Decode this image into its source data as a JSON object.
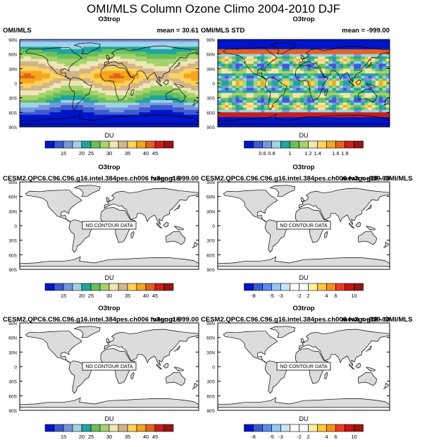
{
  "figure_title": "OMI/MLS Column Ozone Climo 2004-2010 DJF",
  "chart_data": [
    {
      "type": "heatmap",
      "variable": "O3trop",
      "left_label": "OMI/MLS",
      "right_label": "mean =  30.61",
      "units": "DU",
      "lat_ticks": [
        "90N",
        "60N",
        "30N",
        "0",
        "30S",
        "60S",
        "90S"
      ],
      "colorbar_ticks": [
        "15",
        "20",
        "25",
        "30",
        "35",
        "40",
        "45"
      ],
      "colorbar_colors": [
        "#0014c8",
        "#3c5ad2",
        "#7896dc",
        "#a0d2e6",
        "#1ea5a0",
        "#6bbf5a",
        "#a5d26e",
        "#f0e6b4",
        "#d2b48c",
        "#ffd25a",
        "#f5a51e",
        "#e1641e",
        "#c81e1e",
        "#9b1414"
      ],
      "map_fill": "ozone_field",
      "note": ""
    },
    {
      "type": "heatmap",
      "variable": "O3trop",
      "left_label": "OMI/MLS STD",
      "right_label": "mean = -999.00",
      "units": "DU",
      "lat_ticks": [
        "90N",
        "60N",
        "30N",
        "0",
        "30S",
        "60S",
        "90S"
      ],
      "colorbar_ticks": [
        "0.6",
        "0.8",
        "1",
        "1.2",
        "1.4",
        "1.6",
        "1.8"
      ],
      "colorbar_colors": [
        "#0014c8",
        "#3c5ad2",
        "#7896dc",
        "#a0d2e6",
        "#1ea5a0",
        "#6bbf5a",
        "#a5d26e",
        "#f0e6b4",
        "#ffd25a",
        "#f5a51e",
        "#e1641e",
        "#c81e1e",
        "#9b1414"
      ],
      "map_fill": "std_field",
      "note": ""
    },
    {
      "type": "heatmap",
      "variable": "O3trop",
      "left_label": "CESM2.QPC6.C96.C96.g16.intel.384pes.ch006 fv3gog18",
      "right_label": "mean = -999.00",
      "units": "DU",
      "lat_ticks": [
        "90N",
        "60N",
        "30N",
        "0",
        "30S",
        "60S",
        "90S"
      ],
      "colorbar_ticks": [
        "15",
        "20",
        "25",
        "30",
        "35",
        "40",
        "45"
      ],
      "colorbar_colors": [
        "#0014c8",
        "#3c5ad2",
        "#7896dc",
        "#a0d2e6",
        "#1ea5a0",
        "#6bbf5a",
        "#a5d26e",
        "#f0e6b4",
        "#d2b48c",
        "#ffd25a",
        "#f5a51e",
        "#e1641e",
        "#c81e1e",
        "#9b1414"
      ],
      "map_fill": "none",
      "note": "NO CONTOUR DATA"
    },
    {
      "type": "heatmap",
      "variable": "O3trop",
      "left_label": "CESM2.QPC6.C96.C96.g16.intel.384pes.ch006 fv3gog18 - OMI/MLS",
      "right_label": "mean = -999.00",
      "units": "DU",
      "lat_ticks": [
        "90N",
        "60N",
        "30N",
        "0",
        "30S",
        "60S",
        "90S"
      ],
      "colorbar_ticks": [
        "-8",
        "-5",
        "-3",
        "-2",
        "2",
        "4",
        "6",
        "10"
      ],
      "colorbar_colors": [
        "#0014c8",
        "#3c5ad2",
        "#5a8cf0",
        "#96c8f5",
        "#c8e6fa",
        "#ffffff",
        "#ffffff",
        "#fff0a0",
        "#ffc83c",
        "#ff8c1e",
        "#f03c1e",
        "#c81414",
        "#9b1414"
      ],
      "map_fill": "none",
      "note": "NO CONTOUR DATA"
    },
    {
      "type": "heatmap",
      "variable": "O3trop",
      "left_label": "CESM2.QPC6.C96.C96.g16.intel.384pes.ch006 fv3gog18",
      "right_label": "mean = -999.00",
      "units": "DU",
      "lat_ticks": [
        "90N",
        "60N",
        "30N",
        "0",
        "30S",
        "60S",
        "90S"
      ],
      "colorbar_ticks": [
        "15",
        "20",
        "25",
        "30",
        "35",
        "40",
        "45"
      ],
      "colorbar_colors": [
        "#0014c8",
        "#3c5ad2",
        "#7896dc",
        "#a0d2e6",
        "#1ea5a0",
        "#6bbf5a",
        "#a5d26e",
        "#f0e6b4",
        "#d2b48c",
        "#ffd25a",
        "#f5a51e",
        "#e1641e",
        "#c81e1e",
        "#9b1414"
      ],
      "map_fill": "none",
      "note": "NO CONTOUR DATA"
    },
    {
      "type": "heatmap",
      "variable": "O3trop",
      "left_label": "CESM2.QPC6.C96.C96.g16.intel.384pes.ch006 fv3gog18 - OMI/MLS",
      "right_label": "mean = -999.00",
      "units": "DU",
      "lat_ticks": [
        "90N",
        "60N",
        "30N",
        "0",
        "30S",
        "60S",
        "90S"
      ],
      "colorbar_ticks": [
        "-8",
        "-5",
        "-3",
        "-2",
        "2",
        "4",
        "6",
        "10"
      ],
      "colorbar_colors": [
        "#0014c8",
        "#3c5ad2",
        "#5a8cf0",
        "#96c8f5",
        "#c8e6fa",
        "#ffffff",
        "#ffffff",
        "#fff0a0",
        "#ffc83c",
        "#ff8c1e",
        "#f03c1e",
        "#c81414",
        "#9b1414"
      ],
      "map_fill": "none",
      "note": "NO CONTOUR DATA"
    }
  ]
}
